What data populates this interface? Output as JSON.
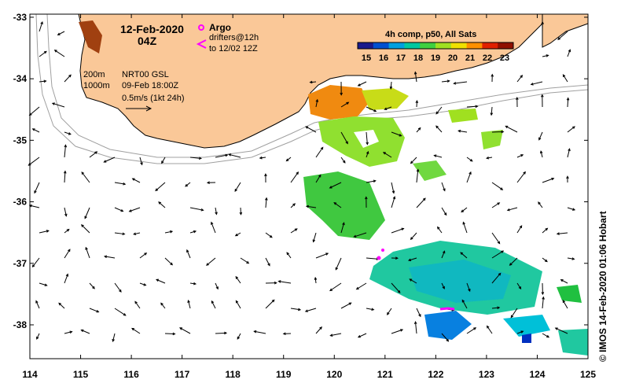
{
  "header": {
    "date": "12-Feb-2020",
    "time": "04Z"
  },
  "legend": {
    "argo_label": "Argo",
    "drifters_label": "drifters@12h",
    "drifters_period": "to 12/02 12Z",
    "argo_color": "#ff00ff",
    "drifter_color": "#ff00ff"
  },
  "colorbar": {
    "title": "4h comp, p50, All Sats",
    "ticks": [
      "15",
      "16",
      "17",
      "18",
      "19",
      "20",
      "21",
      "22",
      "23"
    ],
    "range": [
      14.5,
      23.5
    ],
    "colors": [
      "#1a1a8c",
      "#0050d0",
      "#00a0e0",
      "#00c8a0",
      "#40d040",
      "#a0e020",
      "#f0e000",
      "#ff9000",
      "#e02000",
      "#901000"
    ]
  },
  "info": {
    "isobath_200": "200m",
    "isobath_1000": "1000m",
    "model": "NRT00 GSL",
    "model_time": "09-Feb 18:00Z",
    "scale": "0.5m/s (1kt 24h)"
  },
  "axes": {
    "lon_ticks": [
      "114",
      "115",
      "116",
      "117",
      "118",
      "119",
      "120",
      "121",
      "122",
      "123",
      "124",
      "125"
    ],
    "lat_ticks": [
      "-33",
      "-34",
      "-35",
      "-36",
      "-37",
      "-38"
    ],
    "lon_range": [
      114,
      125
    ],
    "lat_range": [
      -38.55,
      -32.95
    ]
  },
  "credit": "© IMOS 14-Feb-2020 01:06 Hobart",
  "colors": {
    "land": "#fac898",
    "coast": "#000000",
    "isobath": "#a0a0a0"
  }
}
